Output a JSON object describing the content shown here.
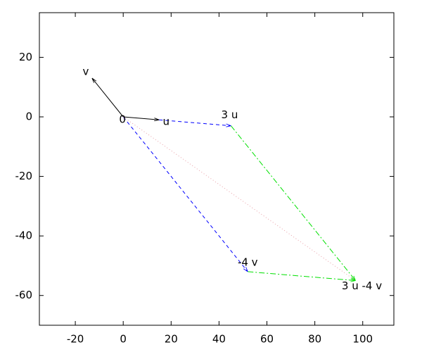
{
  "chart_data": {
    "type": "vector",
    "xlim": [
      -35,
      113
    ],
    "ylim": [
      -70,
      35
    ],
    "xticks": [
      -20,
      0,
      20,
      40,
      60,
      80,
      100
    ],
    "yticks": [
      -60,
      -40,
      -20,
      0,
      20
    ],
    "grid": false,
    "series": [
      {
        "color": "#000000",
        "style": "solid",
        "arrow": true,
        "x": [
          0,
          -13
        ],
        "y": [
          0,
          13
        ]
      },
      {
        "color": "#000000",
        "style": "solid",
        "arrow": true,
        "x": [
          0,
          15
        ],
        "y": [
          0,
          -1
        ]
      },
      {
        "color": "#0000ff",
        "style": "dashed",
        "arrow": true,
        "x": [
          15,
          45
        ],
        "y": [
          -1,
          -3
        ]
      },
      {
        "color": "#0000ff",
        "style": "dashed",
        "arrow": true,
        "x": [
          0,
          52
        ],
        "y": [
          0,
          -52
        ]
      },
      {
        "color": "#00e000",
        "style": "dashdot",
        "arrow": true,
        "x": [
          45,
          97
        ],
        "y": [
          -3,
          -55
        ]
      },
      {
        "color": "#00e000",
        "style": "dashdot",
        "arrow": true,
        "x": [
          52,
          97
        ],
        "y": [
          -52,
          -55
        ]
      },
      {
        "color": "#e8a0a8",
        "style": "dotted",
        "arrow": false,
        "x": [
          0,
          97
        ],
        "y": [
          0,
          -55
        ]
      }
    ],
    "labels": [
      {
        "text": "v",
        "x": -13,
        "y": 13
      },
      {
        "text": "0",
        "x": 0,
        "y": 0
      },
      {
        "text": "u",
        "x": 15,
        "y": -1
      },
      {
        "text": "3 u",
        "x": 45,
        "y": -3
      },
      {
        "text": "-4 v",
        "x": 52,
        "y": -52
      },
      {
        "text": "3 u -4 v",
        "x": 97,
        "y": -55
      }
    ]
  }
}
